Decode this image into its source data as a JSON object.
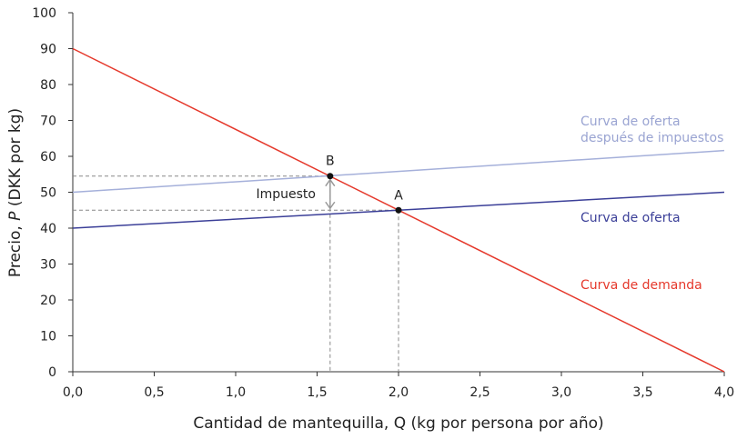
{
  "chart_data": {
    "type": "line",
    "title": "",
    "xlabel": "Cantidad de mantequilla, Q (kg por persona por año)",
    "ylabel_prefix": "Precio, ",
    "ylabel_var": "P",
    "ylabel_suffix": " (DKK por kg)",
    "xlim": [
      0,
      4
    ],
    "ylim": [
      0,
      100
    ],
    "xticks": [
      "0,0",
      "0,5",
      "1,0",
      "1,5",
      "2,0",
      "2,5",
      "3,0",
      "3,5",
      "4,0"
    ],
    "xtick_values": [
      0,
      0.5,
      1,
      1.5,
      2,
      2.5,
      3,
      3.5,
      4
    ],
    "yticks": [
      "0",
      "10",
      "20",
      "30",
      "40",
      "50",
      "60",
      "70",
      "80",
      "90",
      "100"
    ],
    "ytick_values": [
      0,
      10,
      20,
      30,
      40,
      50,
      60,
      70,
      80,
      90,
      100
    ],
    "grid": false,
    "series": [
      {
        "name": "Curva de demanda",
        "color": "#e5382b",
        "x": [
          0,
          4
        ],
        "y": [
          90,
          0
        ]
      },
      {
        "name": "Curva de oferta",
        "color": "#3b3f98",
        "x": [
          0,
          4
        ],
        "y": [
          40,
          50
        ]
      },
      {
        "name_line1": "Curva de oferta",
        "name_line2": "después de impuestos",
        "color": "#a5b0da",
        "x": [
          0,
          4
        ],
        "y": [
          50,
          61.6
        ]
      }
    ],
    "points": [
      {
        "label": "A",
        "x": 2.0,
        "y": 45
      },
      {
        "label": "B",
        "x": 1.58,
        "y": 54.5
      }
    ],
    "annotation": {
      "label": "Impuesto",
      "from": 45,
      "to": 54.5,
      "x": 1.58
    }
  }
}
